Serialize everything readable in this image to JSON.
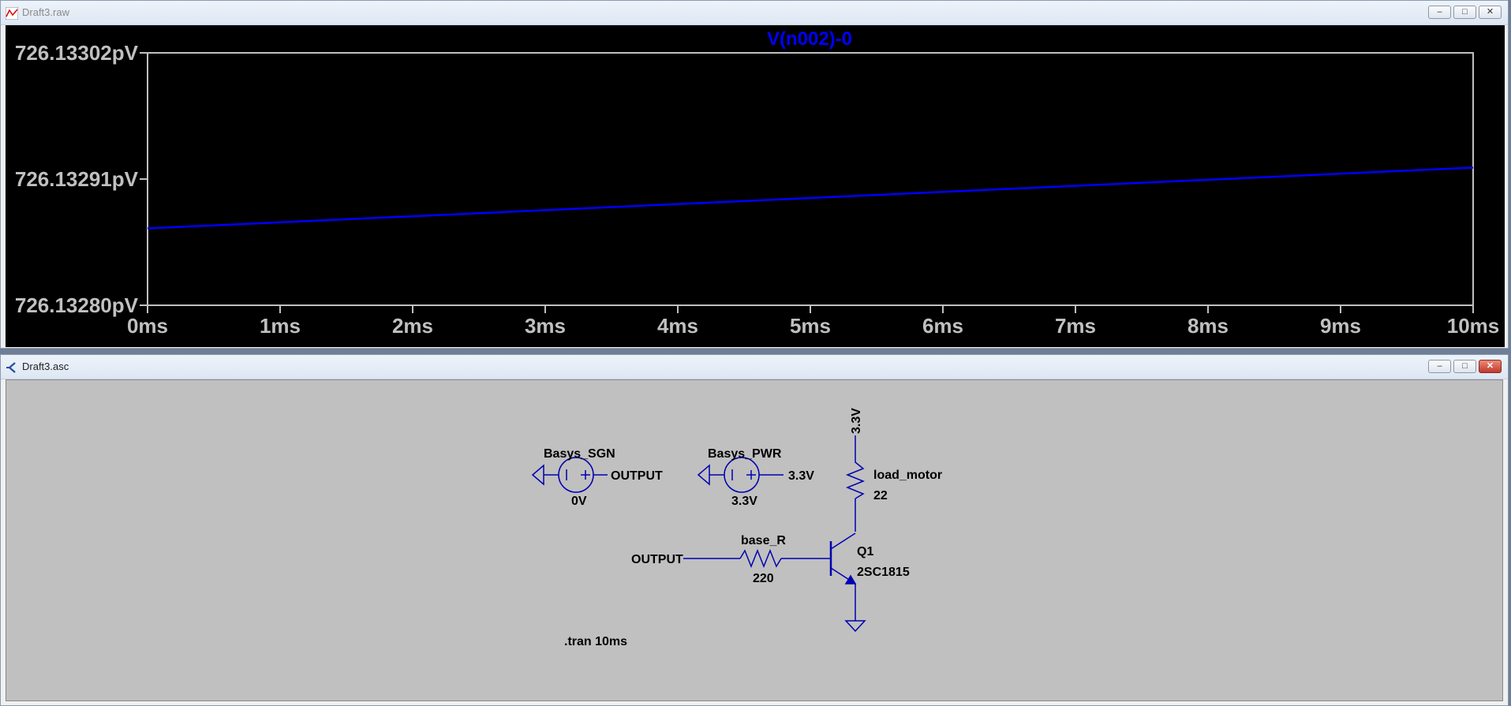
{
  "plot_window": {
    "title": "Draft3.raw",
    "trace_label": "V(n002)-0",
    "trace_color": "#0000ff",
    "buttons": [
      "minimize",
      "maximize",
      "close"
    ]
  },
  "chart_data": {
    "type": "line",
    "title": "V(n002)-0",
    "x_ticks": [
      "0ms",
      "1ms",
      "2ms",
      "3ms",
      "4ms",
      "5ms",
      "6ms",
      "7ms",
      "8ms",
      "9ms",
      "10ms"
    ],
    "y_ticks": [
      "726.13302pV",
      "726.13291pV",
      "726.13280pV"
    ],
    "xlim": [
      0,
      10
    ],
    "ylim": [
      726.1328,
      726.13302
    ],
    "series": [
      {
        "x": [
          0,
          10
        ],
        "y": [
          726.132867,
          726.13292
        ]
      }
    ],
    "grid": false
  },
  "schem_window": {
    "title": "Draft3.asc",
    "buttons": [
      "minimize",
      "maximize",
      "close"
    ]
  },
  "schematic": {
    "sgn_name": "Basys_SGN",
    "sgn_value": "0V",
    "sgn_net": "OUTPUT",
    "pwr_name": "Basys_PWR",
    "pwr_value": "3.3V",
    "pwr_net": "3.3V",
    "rail_label": "3.3V",
    "load_name": "load_motor",
    "load_value": "22",
    "input_net": "OUTPUT",
    "base_name": "base_R",
    "base_value": "220",
    "q_name": "Q1",
    "q_model": "2SC1815",
    "directive": ".tran 10ms",
    "wire_color": "#0000b0"
  }
}
